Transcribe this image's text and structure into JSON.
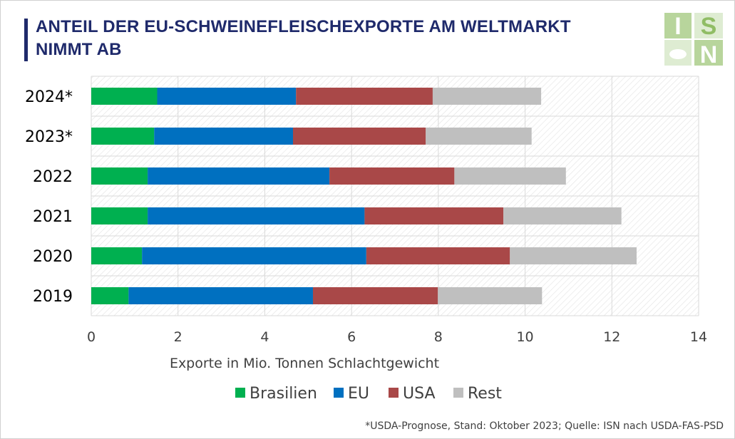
{
  "title": "ANTEIL DER EU-SCHWEINEFLEISCHEXPORTE AM WELTMARKT NIMMT AB",
  "logo": {
    "letters": [
      "I",
      "S",
      "N"
    ],
    "colors": [
      "#7db24a",
      "#ffffff"
    ]
  },
  "footnote": "*USDA-Prognose, Stand: Oktober 2023; Quelle: ISN nach USDA-FAS-PSD",
  "chart_data": {
    "type": "bar",
    "orientation": "horizontal",
    "stacked": true,
    "categories": [
      "2024*",
      "2023*",
      "2022",
      "2021",
      "2020",
      "2019"
    ],
    "series": [
      {
        "name": "Brasilien",
        "color": "#00b050",
        "values": [
          1.52,
          1.45,
          1.3,
          1.3,
          1.17,
          0.86
        ]
      },
      {
        "name": "EU",
        "color": "#0070c0",
        "values": [
          3.2,
          3.2,
          4.19,
          5.0,
          5.17,
          4.25
        ]
      },
      {
        "name": "USA",
        "color": "#a94848",
        "values": [
          3.15,
          3.06,
          2.88,
          3.2,
          3.31,
          2.88
        ]
      },
      {
        "name": "Rest",
        "color": "#bfbfbf",
        "values": [
          2.5,
          2.44,
          2.57,
          2.72,
          2.92,
          2.4
        ]
      }
    ],
    "xlabel": "Exporte in Mio. Tonnen Schlachtgewicht",
    "xlim": [
      0,
      14
    ],
    "xticks": [
      "0",
      "2",
      "4",
      "6",
      "8",
      "10",
      "12",
      "14"
    ],
    "xtick_values": [
      0,
      2,
      4,
      6,
      8,
      10,
      12,
      14
    ],
    "grid": true,
    "legend_position": "bottom"
  }
}
